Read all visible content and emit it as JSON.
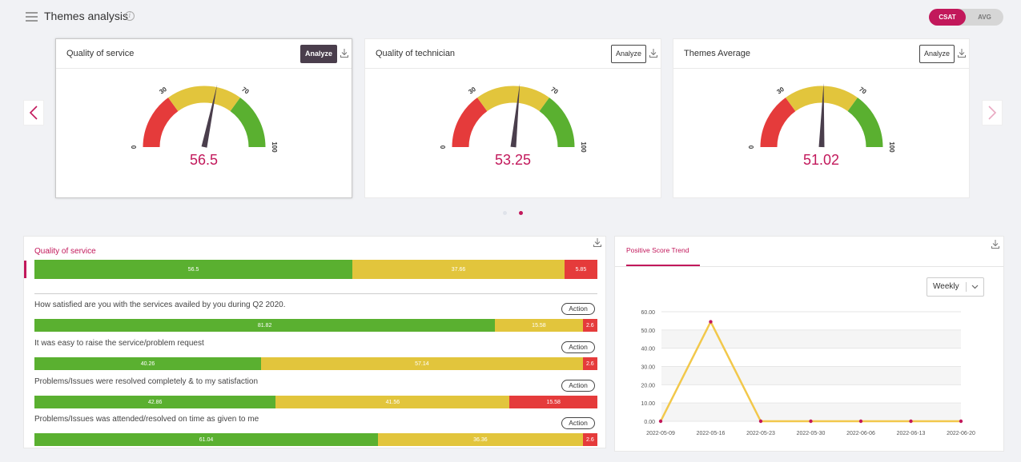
{
  "header": {
    "title": "Themes analysis",
    "info_icon": "info-icon",
    "toggle": {
      "selected": "CSAT",
      "other": "AVG"
    }
  },
  "colors": {
    "accent": "#c2185b",
    "green": "#5ab030",
    "yellow": "#e2c53c",
    "red": "#e53b3b",
    "trend": "#f2c84b"
  },
  "gauge_cards": [
    {
      "title": "Quality of service",
      "value": 56.5,
      "value_label": "56.5",
      "button": "Analyze",
      "active": true
    },
    {
      "title": "Quality of technician",
      "value": 53.25,
      "value_label": "53.25",
      "button": "Analyze",
      "active": false
    },
    {
      "title": "Themes Average",
      "value": 51.02,
      "value_label": "51.02",
      "button": "Analyze",
      "active": false
    }
  ],
  "gauge_scale": {
    "min": 0,
    "max": 100,
    "red_end": 30,
    "yellow_end": 70,
    "tick_labels": [
      "0",
      "30",
      "70",
      "100"
    ]
  },
  "carousel": {
    "page_count": 2,
    "current_page": 2
  },
  "summary": {
    "title": "Quality of service",
    "segments": [
      {
        "value": 56.5,
        "label": "56.5"
      },
      {
        "value": 37.66,
        "label": "37.66"
      },
      {
        "value": 5.85,
        "label": "5.85"
      }
    ]
  },
  "questions": [
    {
      "text": "How satisfied are you with the services availed by you during Q2 2020.",
      "action": "Action",
      "segments": [
        {
          "value": 81.82,
          "label": "81.82"
        },
        {
          "value": 15.58,
          "label": "15.58"
        },
        {
          "value": 2.6,
          "label": "2.6"
        }
      ]
    },
    {
      "text": "It was easy to raise the service/problem request",
      "action": "Action",
      "segments": [
        {
          "value": 40.26,
          "label": "40.26"
        },
        {
          "value": 57.14,
          "label": "57.14"
        },
        {
          "value": 2.6,
          "label": "2.6"
        }
      ]
    },
    {
      "text": "Problems/Issues were resolved completely & to my satisfaction",
      "action": "Action",
      "segments": [
        {
          "value": 42.86,
          "label": "42.86"
        },
        {
          "value": 41.56,
          "label": "41.56"
        },
        {
          "value": 15.58,
          "label": "15.58"
        }
      ]
    },
    {
      "text": "Problems/Issues was attended/resolved on time as given to me",
      "action": "Action",
      "segments": [
        {
          "value": 61.04,
          "label": "61.04"
        },
        {
          "value": 36.36,
          "label": "36.36"
        },
        {
          "value": 2.6,
          "label": "2.6"
        }
      ]
    }
  ],
  "trend": {
    "tab": "Positive Score Trend",
    "period": "Weekly"
  },
  "chart_data": {
    "type": "line",
    "x": [
      "2022-05-09",
      "2022-05-16",
      "2022-05-23",
      "2022-05-30",
      "2022-06-06",
      "2022-06-13",
      "2022-06-20"
    ],
    "series": [
      {
        "values": [
          0,
          54.5,
          0,
          0,
          0,
          0,
          0
        ]
      }
    ],
    "ylim": [
      0,
      60
    ],
    "yticks": [
      "0.00",
      "10.00",
      "20.00",
      "30.00",
      "40.00",
      "50.00",
      "60.00"
    ],
    "grid": true
  }
}
